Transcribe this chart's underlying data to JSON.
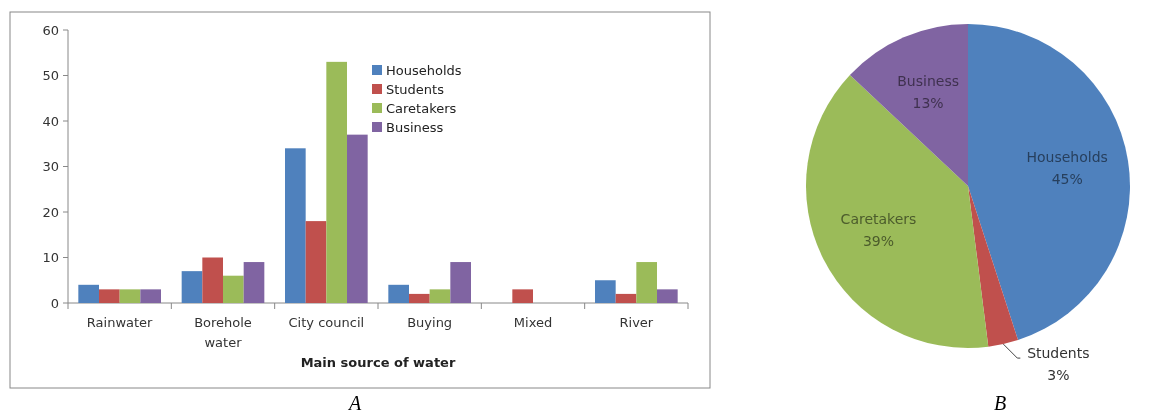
{
  "chart_data": [
    {
      "type": "bar",
      "xlabel": "Main source of water",
      "categories": [
        "Rainwater",
        "Borehole water",
        "City council",
        "Buying",
        "Mixed",
        "River"
      ],
      "series": [
        {
          "name": "Households",
          "color": "#4f81bd",
          "values": [
            4,
            7,
            34,
            4,
            0,
            5
          ]
        },
        {
          "name": "Students",
          "color": "#c0504d",
          "values": [
            3,
            10,
            18,
            2,
            3,
            2
          ]
        },
        {
          "name": "Caretakers",
          "color": "#9bbb59",
          "values": [
            3,
            6,
            53,
            3,
            0,
            9
          ]
        },
        {
          "name": "Business",
          "color": "#8064a2",
          "values": [
            3,
            9,
            37,
            9,
            0,
            3
          ]
        }
      ],
      "ylim": [
        0,
        60
      ],
      "yticks": [
        0,
        10,
        20,
        30,
        40,
        50,
        60
      ],
      "grid": false,
      "legend": "top right",
      "annotations": [
        "A"
      ]
    },
    {
      "type": "pie",
      "categories": [
        "Households",
        "Students",
        "Caretakers",
        "Business"
      ],
      "values": [
        45,
        3,
        39,
        13
      ],
      "colors": [
        "#4f81bd",
        "#c0504d",
        "#9bbb59",
        "#8064a2"
      ],
      "value_labels": [
        "45%",
        "3%",
        "39%",
        "13%"
      ],
      "legend": false,
      "annotations": [
        "B"
      ]
    }
  ]
}
